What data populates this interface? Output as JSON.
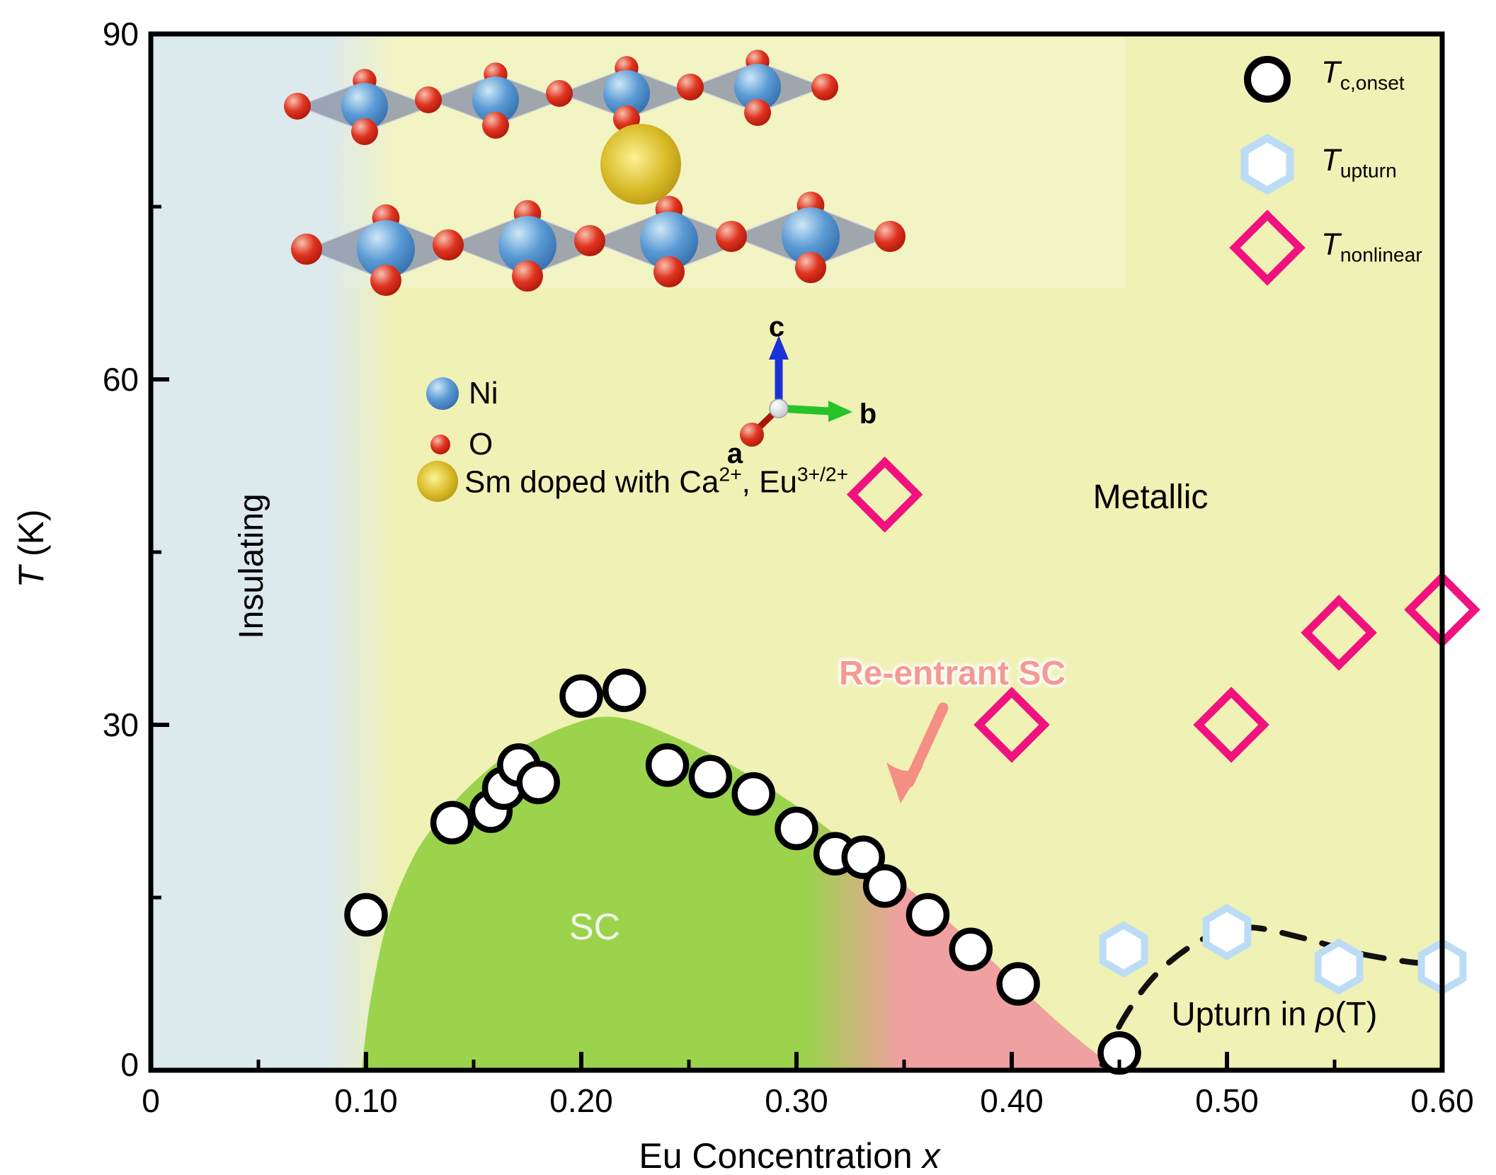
{
  "axes": {
    "y_label_main": "T",
    "y_label_unit": " (K)",
    "x_label_main": "Eu Concentration ",
    "x_label_italic": "x",
    "x_tick_labels": [
      "0",
      "0.10",
      "0.20",
      "0.30",
      "0.40",
      "0.50",
      "0.60"
    ],
    "y_tick_labels": [
      "0",
      "30",
      "60",
      "90"
    ]
  },
  "legend": {
    "items": [
      {
        "symbol": "circle",
        "prefix": "T",
        "sub": "c,onset"
      },
      {
        "symbol": "hexagon",
        "prefix": "T",
        "sub": "upturn"
      },
      {
        "symbol": "diamond",
        "prefix": "T",
        "sub": "nonlinear"
      }
    ]
  },
  "region_labels": {
    "insulating": "Insulating",
    "metallic": "Metallic",
    "sc": "SC",
    "reentrant": "Re-entrant SC",
    "upturn_prefix": "Upturn in ",
    "upturn_rho": "ρ",
    "upturn_suffix": "(T)"
  },
  "inset": {
    "ni": "Ni",
    "o": "O",
    "sm_prefix": "Sm doped with Ca",
    "sm_sup1": "2+",
    "sm_mid": ", Eu",
    "sm_sup2": "3+/2+",
    "axis_a": "a",
    "axis_b": "b",
    "axis_c": "c"
  },
  "colors": {
    "metallic_yellow": "#f0f1b4",
    "insulating_blue": "#dce9ed",
    "sc_green": "#9cd34d",
    "reentrant_pink": "#efa0a0",
    "tc_marker": "#000000",
    "upturn_marker": "#bcdcf5",
    "nonlinear_marker": "#f0127f",
    "arrow_salmon": "#f58e85",
    "dashed_curve": "#111111"
  },
  "chart_data": {
    "type": "scatter",
    "xlabel": "Eu Concentration x",
    "ylabel": "T (K)",
    "xlim": [
      0,
      0.6
    ],
    "ylim": [
      0,
      90
    ],
    "x_ticks": [
      0,
      0.1,
      0.2,
      0.3,
      0.4,
      0.5,
      0.6
    ],
    "x_minor_ticks": [
      0.05,
      0.15,
      0.25,
      0.35,
      0.45,
      0.55
    ],
    "y_ticks": [
      0,
      30,
      60,
      90
    ],
    "y_minor_ticks": [
      15,
      45,
      75
    ],
    "grid": false,
    "legend_position": "top-right",
    "series": [
      {
        "name": "Tc,onset",
        "marker": "circle",
        "points": [
          [
            0.1,
            13.5
          ],
          [
            0.14,
            21.5
          ],
          [
            0.158,
            22.5
          ],
          [
            0.164,
            24.5
          ],
          [
            0.171,
            26.5
          ],
          [
            0.18,
            25
          ],
          [
            0.2,
            32.5
          ],
          [
            0.22,
            33
          ],
          [
            0.24,
            26.5
          ],
          [
            0.26,
            25.5
          ],
          [
            0.28,
            24
          ],
          [
            0.3,
            21
          ],
          [
            0.318,
            18.8
          ],
          [
            0.331,
            18.5
          ],
          [
            0.341,
            16
          ],
          [
            0.361,
            13.5
          ],
          [
            0.381,
            10.5
          ],
          [
            0.403,
            7.5
          ],
          [
            0.45,
            1.5
          ]
        ]
      },
      {
        "name": "Tupturn",
        "marker": "hexagon",
        "points": [
          [
            0.452,
            10.5
          ],
          [
            0.5,
            12
          ],
          [
            0.552,
            9
          ],
          [
            0.6,
            9
          ]
        ]
      },
      {
        "name": "Tnonlinear",
        "marker": "diamond",
        "points": [
          [
            0.341,
            50
          ],
          [
            0.4,
            30
          ],
          [
            0.502,
            30
          ],
          [
            0.552,
            38
          ],
          [
            0.6,
            40
          ]
        ]
      }
    ],
    "sc_dome_boundary": [
      [
        0.098,
        0
      ],
      [
        0.102,
        6
      ],
      [
        0.11,
        13
      ],
      [
        0.122,
        18.5
      ],
      [
        0.135,
        22
      ],
      [
        0.15,
        25
      ],
      [
        0.165,
        27.3
      ],
      [
        0.18,
        28.8
      ],
      [
        0.195,
        30
      ],
      [
        0.21,
        30.7
      ],
      [
        0.225,
        30.3
      ],
      [
        0.245,
        28.8
      ],
      [
        0.265,
        27
      ],
      [
        0.285,
        24.8
      ],
      [
        0.305,
        22.3
      ],
      [
        0.325,
        19.5
      ],
      [
        0.345,
        16.8
      ],
      [
        0.365,
        13.8
      ],
      [
        0.385,
        10.5
      ],
      [
        0.405,
        7
      ],
      [
        0.425,
        3.6
      ],
      [
        0.445,
        0.6
      ],
      [
        0.45,
        0
      ]
    ],
    "reentrant_region": {
      "x_start": 0.305,
      "x_end": 0.45
    },
    "insulating_region": {
      "x_start": 0,
      "x_end": 0.105
    },
    "upturn_dashed_curve": [
      [
        0.442,
        0.5
      ],
      [
        0.452,
        4.5
      ],
      [
        0.468,
        8.5
      ],
      [
        0.49,
        11.5
      ],
      [
        0.51,
        12.4
      ],
      [
        0.535,
        11.5
      ],
      [
        0.56,
        10.2
      ],
      [
        0.585,
        9.4
      ],
      [
        0.602,
        9.2
      ]
    ],
    "phase_labels": [
      "Insulating",
      "Metallic",
      "SC",
      "Re-entrant SC",
      "Upturn in ρ(T)"
    ]
  }
}
